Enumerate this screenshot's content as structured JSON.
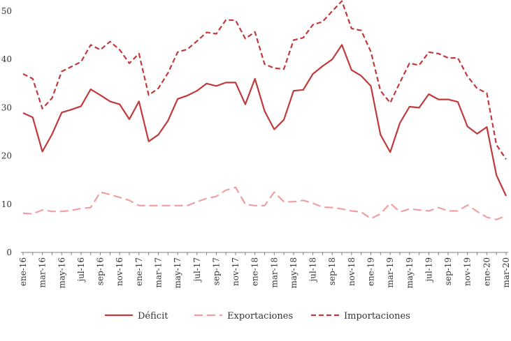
{
  "chart_data": {
    "type": "line",
    "title": "",
    "xlabel": "",
    "ylabel": "",
    "ylim": [
      0,
      50
    ],
    "yticks": [
      0,
      10,
      20,
      30,
      40,
      50
    ],
    "grid": false,
    "legend_position": "bottom",
    "x": [
      "ene-16",
      "feb-16",
      "mar-16",
      "abr-16",
      "may-16",
      "jun-16",
      "jul-16",
      "ago-16",
      "sep-16",
      "oct-16",
      "nov-16",
      "dic-16",
      "ene-17",
      "feb-17",
      "mar-17",
      "abr-17",
      "may-17",
      "jun-17",
      "jul-17",
      "ago-17",
      "sep-17",
      "oct-17",
      "nov-17",
      "dic-17",
      "ene-18",
      "feb-18",
      "mar-18",
      "abr-18",
      "may-18",
      "jun-18",
      "jul-18",
      "ago-18",
      "sep-18",
      "oct-18",
      "nov-18",
      "dic-18",
      "ene-19",
      "feb-19",
      "mar-19",
      "abr-19",
      "may-19",
      "jun-19",
      "jul-19",
      "ago-19",
      "sep-19",
      "oct-19",
      "nov-19",
      "dic-19",
      "ene-20",
      "feb-20",
      "mar-20"
    ],
    "x_tick_labels": [
      "ene-16",
      "mar-16",
      "may-16",
      "jul-16",
      "sep-16",
      "nov-16",
      "ene-17",
      "mar-17",
      "may-17",
      "jul-17",
      "sep-17",
      "nov-17",
      "ene-18",
      "mar-18",
      "may-18",
      "jul-18",
      "sep-18",
      "nov-18",
      "ene-19",
      "mar-19",
      "may-19",
      "jul-19",
      "sep-19",
      "nov-19",
      "ene-20",
      "mar-20"
    ],
    "series": [
      {
        "name": "Déficit",
        "color": "#c0393b",
        "style": "solid",
        "values": [
          28.9,
          28.0,
          20.9,
          24.5,
          29.0,
          29.6,
          30.3,
          33.8,
          32.6,
          31.3,
          30.7,
          27.6,
          31.3,
          23.0,
          24.4,
          27.3,
          31.8,
          32.5,
          33.5,
          35.0,
          34.5,
          35.2,
          35.2,
          30.7,
          36.0,
          29.3,
          25.5,
          27.5,
          33.5,
          33.7,
          37.0,
          38.6,
          40.0,
          43.0,
          37.8,
          36.6,
          34.5,
          24.4,
          20.8,
          26.8,
          30.2,
          30.0,
          32.8,
          31.7,
          31.7,
          31.2,
          26.1,
          24.6,
          26.0,
          16.0,
          11.7
        ]
      },
      {
        "name": "Exportaciones",
        "color": "#f0a0a0",
        "style": "dashed",
        "values": [
          8.1,
          8.0,
          8.8,
          8.5,
          8.5,
          8.7,
          9.1,
          9.3,
          12.5,
          12.0,
          11.4,
          10.8,
          9.7,
          9.7,
          9.7,
          9.7,
          9.7,
          9.7,
          10.5,
          11.2,
          11.6,
          12.9,
          13.5,
          10.0,
          9.7,
          9.7,
          12.5,
          10.5,
          10.5,
          10.8,
          10.2,
          9.4,
          9.3,
          9.0,
          8.6,
          8.4,
          7.0,
          8.0,
          10.2,
          8.4,
          9.0,
          8.8,
          8.6,
          9.3,
          8.6,
          8.6,
          9.8,
          8.5,
          7.3,
          6.8,
          7.6
        ]
      },
      {
        "name": "Importaciones",
        "color": "#c0393b",
        "style": "dashed",
        "values": [
          37.0,
          36.0,
          29.8,
          32.0,
          37.5,
          38.5,
          39.5,
          43.0,
          42.0,
          43.7,
          42.0,
          39.2,
          41.2,
          32.6,
          34.0,
          37.2,
          41.5,
          42.1,
          43.8,
          45.6,
          45.3,
          48.2,
          48.1,
          44.3,
          45.7,
          39.0,
          38.2,
          38.0,
          44.0,
          44.5,
          47.2,
          47.8,
          50.0,
          52.1,
          46.4,
          46.0,
          41.6,
          33.5,
          31.0,
          35.2,
          39.2,
          38.8,
          41.5,
          41.2,
          40.3,
          40.3,
          36.5,
          34.0,
          33.0,
          22.3,
          19.3
        ]
      }
    ]
  }
}
